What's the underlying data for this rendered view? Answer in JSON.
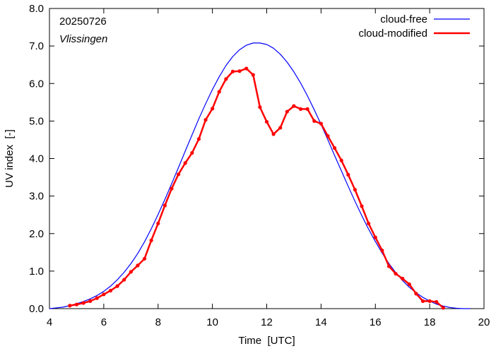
{
  "chart_data": {
    "type": "line",
    "xlabel": "Time  [UTC]",
    "ylabel": "UV index  [-]",
    "xlim": [
      4,
      20
    ],
    "ylim": [
      0,
      8
    ],
    "xticks": [
      4,
      6,
      8,
      10,
      12,
      14,
      16,
      18,
      20
    ],
    "xtick_labels": [
      "4",
      "6",
      "8",
      "10",
      "12",
      "14",
      "16",
      "18",
      "20"
    ],
    "yticks": [
      0,
      1,
      2,
      3,
      4,
      5,
      6,
      7,
      8
    ],
    "ytick_labels": [
      "0.0",
      "1.0",
      "2.0",
      "3.0",
      "4.0",
      "5.0",
      "6.0",
      "7.0",
      "8.0"
    ],
    "grid": false,
    "legend_position": "top-right",
    "annotations": {
      "date": "20250726",
      "location": "Vlissingen"
    },
    "series": [
      {
        "name": "cloud-free",
        "color": "#0000ff",
        "markers": false,
        "x": [
          4.0,
          4.25,
          4.5,
          4.75,
          5.0,
          5.25,
          5.5,
          5.75,
          6.0,
          6.25,
          6.5,
          6.75,
          7.0,
          7.25,
          7.5,
          7.75,
          8.0,
          8.25,
          8.5,
          8.75,
          9.0,
          9.25,
          9.5,
          9.75,
          10.0,
          10.25,
          10.5,
          10.75,
          11.0,
          11.25,
          11.5,
          11.75,
          12.0,
          12.25,
          12.5,
          12.75,
          13.0,
          13.25,
          13.5,
          13.75,
          14.0,
          14.25,
          14.5,
          14.75,
          15.0,
          15.25,
          15.5,
          15.75,
          16.0,
          16.25,
          16.5,
          16.75,
          17.0,
          17.25,
          17.5,
          17.75,
          18.0,
          18.25,
          18.5,
          18.75,
          19.0,
          19.25,
          19.5
        ],
        "y": [
          0.0,
          0.02,
          0.04,
          0.08,
          0.13,
          0.19,
          0.26,
          0.35,
          0.46,
          0.6,
          0.77,
          0.97,
          1.2,
          1.47,
          1.78,
          2.13,
          2.51,
          2.91,
          3.33,
          3.76,
          4.2,
          4.63,
          5.06,
          5.46,
          5.84,
          6.18,
          6.48,
          6.72,
          6.9,
          7.02,
          7.08,
          7.08,
          7.04,
          6.94,
          6.78,
          6.57,
          6.31,
          6.01,
          5.67,
          5.3,
          4.91,
          4.5,
          4.08,
          3.67,
          3.26,
          2.86,
          2.48,
          2.12,
          1.79,
          1.48,
          1.2,
          0.96,
          0.75,
          0.57,
          0.42,
          0.3,
          0.2,
          0.12,
          0.07,
          0.03,
          0.01,
          0.0,
          0.0
        ]
      },
      {
        "name": "cloud-modified",
        "color": "#ff0000",
        "markers": true,
        "x": [
          4.75,
          5.0,
          5.25,
          5.5,
          5.75,
          6.0,
          6.25,
          6.5,
          6.75,
          7.0,
          7.25,
          7.5,
          7.75,
          8.0,
          8.25,
          8.5,
          8.75,
          9.0,
          9.25,
          9.5,
          9.75,
          10.0,
          10.25,
          10.5,
          10.75,
          11.0,
          11.25,
          11.5,
          11.75,
          12.0,
          12.25,
          12.5,
          12.75,
          13.0,
          13.25,
          13.5,
          13.75,
          14.0,
          14.25,
          14.5,
          14.75,
          15.0,
          15.25,
          15.5,
          15.75,
          16.0,
          16.25,
          16.5,
          16.75,
          17.0,
          17.25,
          17.5,
          17.75,
          18.0,
          18.25,
          18.5
        ],
        "y": [
          0.08,
          0.11,
          0.15,
          0.2,
          0.28,
          0.38,
          0.48,
          0.6,
          0.77,
          0.98,
          1.15,
          1.33,
          1.82,
          2.27,
          2.75,
          3.2,
          3.58,
          3.88,
          4.15,
          4.52,
          5.03,
          5.33,
          5.78,
          6.12,
          6.32,
          6.33,
          6.4,
          6.23,
          5.37,
          4.98,
          4.65,
          4.82,
          5.25,
          5.4,
          5.32,
          5.32,
          5.0,
          4.93,
          4.6,
          4.28,
          3.95,
          3.57,
          3.17,
          2.73,
          2.27,
          1.9,
          1.55,
          1.13,
          0.93,
          0.8,
          0.65,
          0.4,
          0.2,
          0.2,
          0.18,
          0.02
        ]
      }
    ]
  }
}
